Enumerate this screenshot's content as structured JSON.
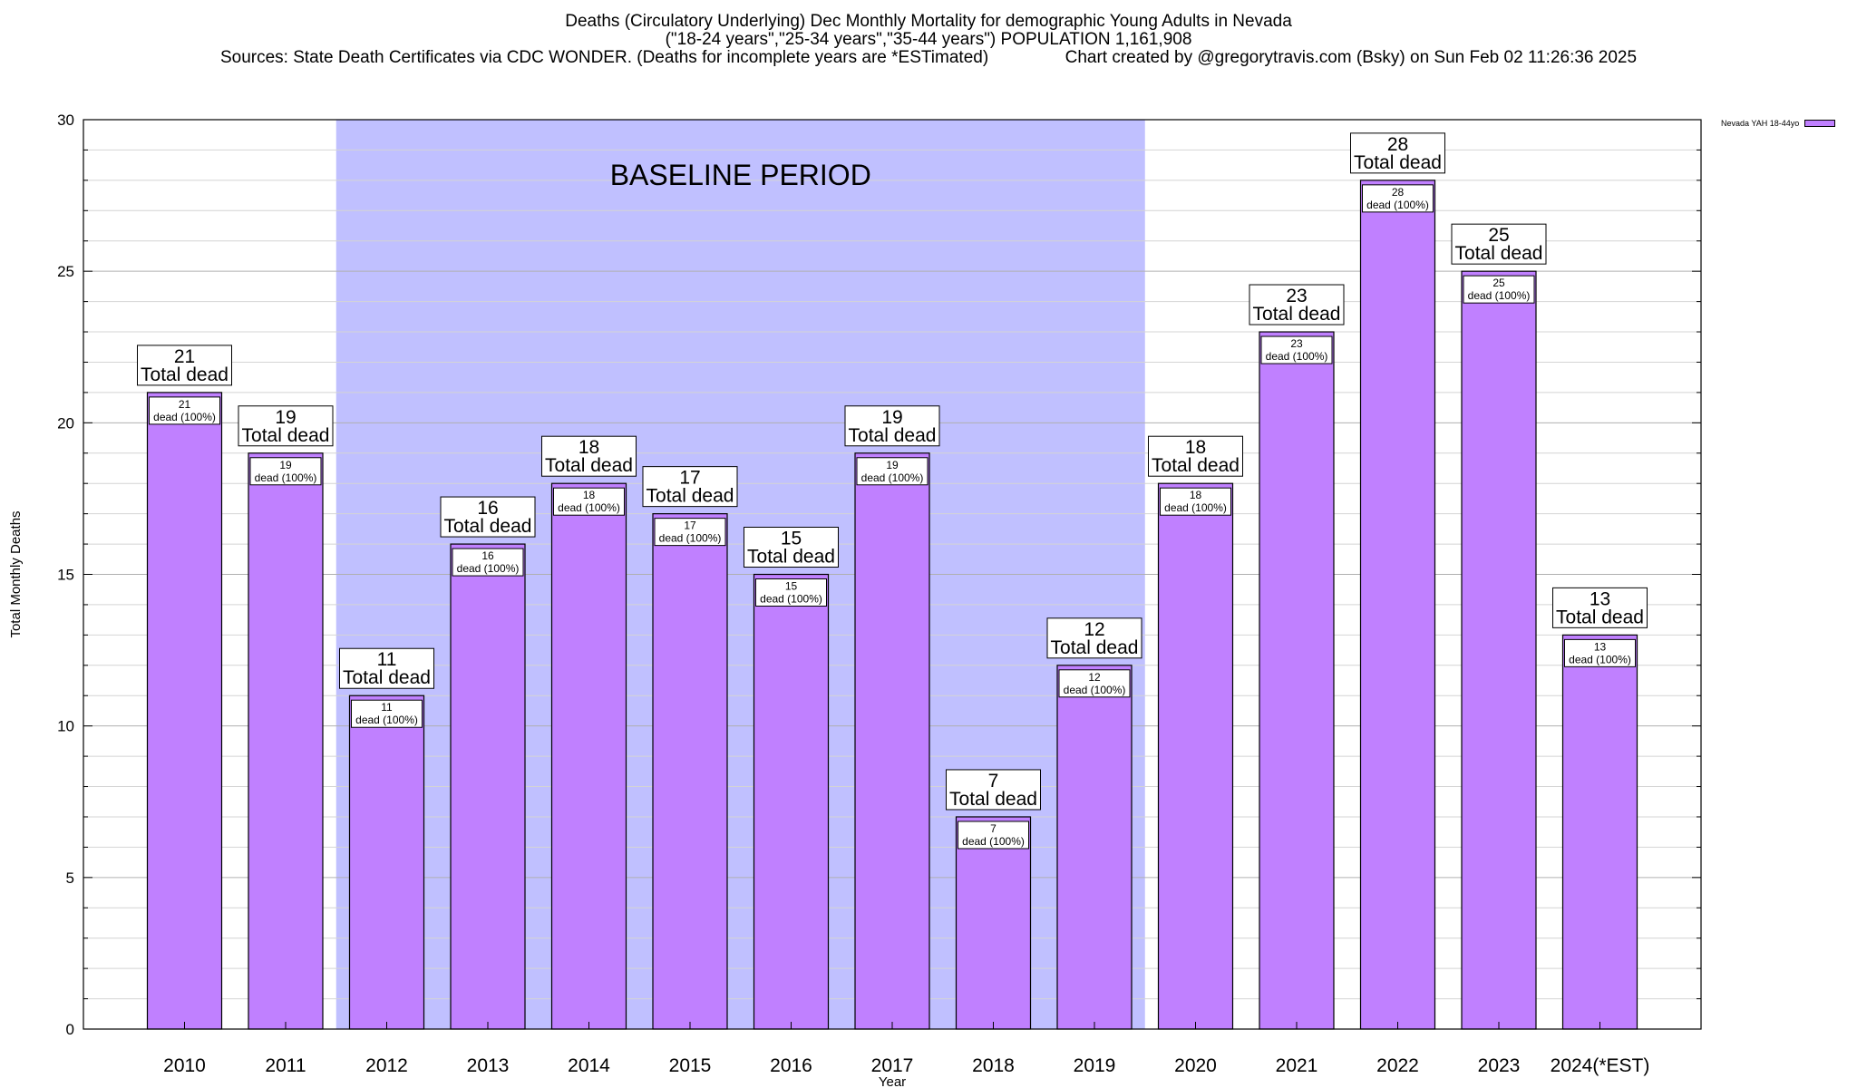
{
  "chart_data": {
    "type": "bar",
    "title": "Deaths (Circulatory Underlying) Dec Monthly Mortality for demographic Young Adults in Nevada",
    "subtitle": "(\"18-24 years\",\"25-34 years\",\"35-44 years\") POPULATION 1,161,908",
    "source_line": "Sources: State Death Certificates via CDC WONDER. (Deaths for incomplete years are *ESTimated)                Chart created by @gregorytravis.com (Bsky) on Sun Feb 02 11:26:36 2025",
    "xlabel": "Year",
    "ylabel": "Total Monthly Deaths",
    "ylim": [
      0,
      30
    ],
    "yticks": [
      "0",
      "5",
      "10",
      "15",
      "20",
      "25",
      "30"
    ],
    "ytick_values": [
      0,
      5,
      10,
      15,
      20,
      25,
      30
    ],
    "grid": true,
    "legend_position": "top-right",
    "categories": [
      "2010",
      "2011",
      "2012",
      "2013",
      "2014",
      "2015",
      "2016",
      "2017",
      "2018",
      "2019",
      "2020",
      "2021",
      "2022",
      "2023",
      "2024(*EST)"
    ],
    "series": [
      {
        "name": "Nevada YAH 18-44yo",
        "values": [
          21,
          19,
          11,
          16,
          18,
          17,
          15,
          19,
          7,
          12,
          18,
          23,
          28,
          25,
          13
        ],
        "color": "#c080ff"
      }
    ],
    "top_labels": {
      "total_suffix": "Total dead",
      "inner_suffix": "dead (100%)"
    },
    "baseline": {
      "label": "BASELINE PERIOD",
      "from": "2012",
      "to": "2019",
      "color": "#c0c0ff"
    }
  }
}
